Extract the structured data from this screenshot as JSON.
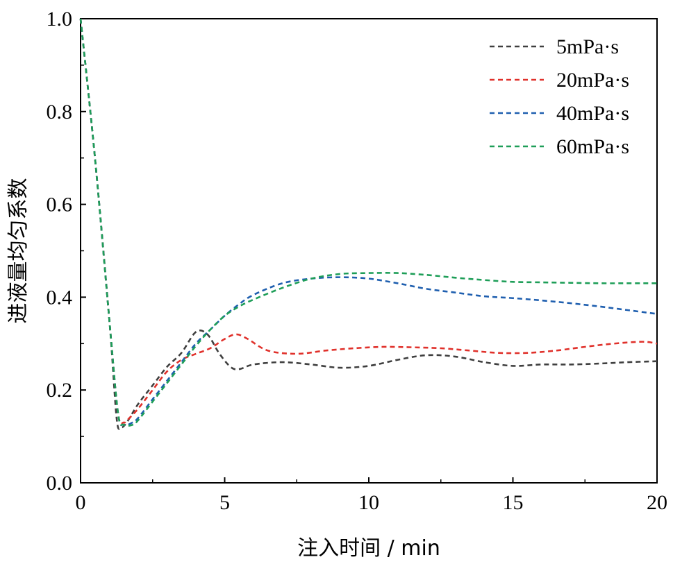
{
  "chart_data": {
    "type": "line",
    "title": "",
    "xlabel": "注入时间 / min",
    "ylabel": "进液量均匀系数",
    "xlim": [
      0,
      20
    ],
    "ylim": [
      0,
      1.0
    ],
    "xticks": [
      0,
      5,
      10,
      15,
      20
    ],
    "xtick_labels": [
      "0",
      "5",
      "10",
      "15",
      "20"
    ],
    "yticks": [
      0.0,
      0.2,
      0.4,
      0.6,
      0.8,
      1.0
    ],
    "ytick_labels": [
      "0.0",
      "0.2",
      "0.4",
      "0.6",
      "0.8",
      "1.0"
    ],
    "grid": false,
    "legend_position": "top-right",
    "line_style": "dashed",
    "series": [
      {
        "name": "5mPa·s",
        "color": "#3f3f3f",
        "x": [
          0,
          0.5,
          1.0,
          1.25,
          1.4,
          1.6,
          2.0,
          2.5,
          3.0,
          3.5,
          4.0,
          4.4,
          4.8,
          5.2,
          5.5,
          6.0,
          7.0,
          8.0,
          9.0,
          10.0,
          11.0,
          12.0,
          13.0,
          14.0,
          15.0,
          16.0,
          17.0,
          18.0,
          19.0,
          20.0
        ],
        "y": [
          1.0,
          0.7,
          0.35,
          0.14,
          0.12,
          0.13,
          0.17,
          0.21,
          0.25,
          0.28,
          0.325,
          0.32,
          0.28,
          0.25,
          0.245,
          0.255,
          0.26,
          0.255,
          0.248,
          0.252,
          0.265,
          0.275,
          0.272,
          0.26,
          0.252,
          0.255,
          0.255,
          0.257,
          0.26,
          0.262
        ]
      },
      {
        "name": "20mPa·s",
        "color": "#e0312b",
        "x": [
          0,
          0.5,
          1.0,
          1.3,
          1.5,
          1.7,
          2.0,
          2.5,
          3.0,
          3.5,
          4.0,
          4.5,
          5.0,
          5.4,
          5.8,
          6.5,
          7.5,
          8.5,
          9.5,
          10.5,
          11.5,
          12.5,
          13.5,
          14.5,
          15.5,
          16.5,
          17.5,
          18.5,
          19.5,
          20.0
        ],
        "y": [
          1.0,
          0.7,
          0.35,
          0.15,
          0.13,
          0.14,
          0.16,
          0.2,
          0.24,
          0.265,
          0.278,
          0.29,
          0.31,
          0.32,
          0.31,
          0.285,
          0.278,
          0.285,
          0.29,
          0.293,
          0.292,
          0.29,
          0.285,
          0.28,
          0.28,
          0.285,
          0.293,
          0.3,
          0.304,
          0.3
        ]
      },
      {
        "name": "40mPa·s",
        "color": "#1f5faf",
        "x": [
          0,
          0.5,
          1.0,
          1.3,
          1.5,
          1.8,
          2.0,
          2.5,
          3.0,
          3.5,
          4.0,
          4.5,
          5.0,
          5.5,
          6.0,
          7.0,
          8.0,
          9.0,
          10.0,
          11.0,
          12.0,
          13.0,
          14.0,
          15.0,
          16.0,
          17.0,
          18.0,
          19.0,
          20.0
        ],
        "y": [
          1.0,
          0.7,
          0.35,
          0.15,
          0.125,
          0.13,
          0.14,
          0.18,
          0.22,
          0.26,
          0.3,
          0.33,
          0.36,
          0.385,
          0.405,
          0.43,
          0.44,
          0.443,
          0.44,
          0.43,
          0.418,
          0.41,
          0.402,
          0.398,
          0.393,
          0.387,
          0.38,
          0.372,
          0.364
        ]
      },
      {
        "name": "60mPa·s",
        "color": "#1e9e58",
        "x": [
          0,
          0.5,
          1.0,
          1.3,
          1.5,
          1.8,
          2.0,
          2.5,
          3.0,
          3.5,
          4.0,
          4.5,
          5.0,
          5.5,
          6.0,
          7.0,
          8.0,
          9.0,
          10.0,
          11.0,
          12.0,
          13.0,
          14.0,
          15.0,
          16.0,
          17.0,
          18.0,
          19.0,
          20.0
        ],
        "y": [
          1.0,
          0.7,
          0.35,
          0.15,
          0.125,
          0.125,
          0.135,
          0.175,
          0.215,
          0.255,
          0.295,
          0.33,
          0.36,
          0.38,
          0.395,
          0.42,
          0.44,
          0.45,
          0.452,
          0.452,
          0.448,
          0.442,
          0.437,
          0.433,
          0.432,
          0.431,
          0.43,
          0.43,
          0.43
        ]
      }
    ]
  }
}
